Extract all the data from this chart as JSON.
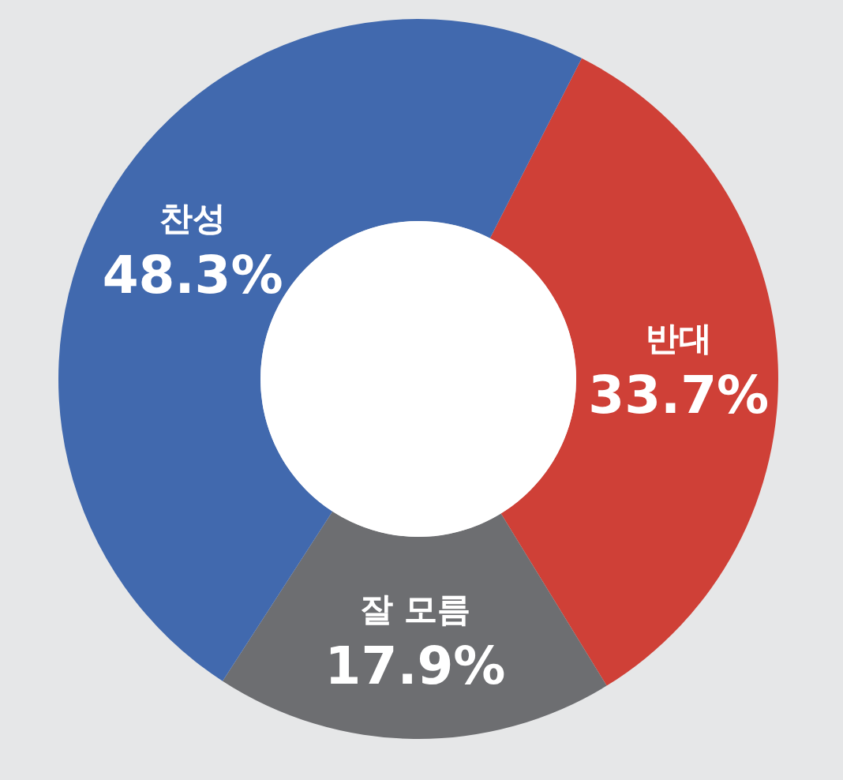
{
  "chart_data": {
    "type": "donut",
    "categories": [
      "반대",
      "잘 모름",
      "찬성"
    ],
    "values": [
      33.7,
      17.9,
      48.3
    ],
    "colors": [
      "#cf4037",
      "#6d6e71",
      "#4169ae"
    ],
    "value_labels": [
      "33.7%",
      "17.9%",
      "48.3%"
    ]
  }
}
